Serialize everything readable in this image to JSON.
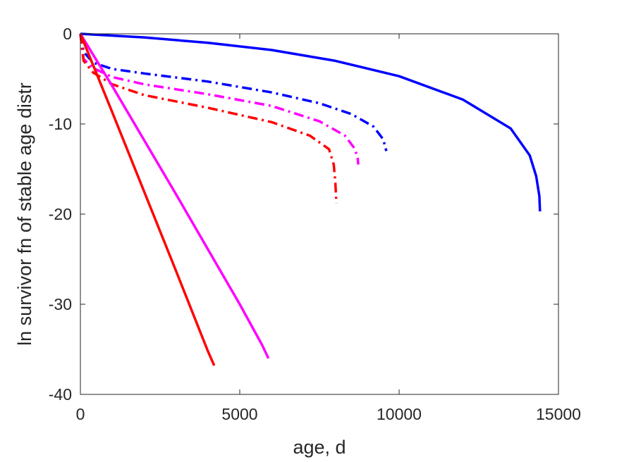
{
  "chart_data": {
    "type": "line",
    "title": "",
    "xlabel": "age, d",
    "ylabel": "ln survivor fn of stable age distr",
    "xlim": [
      0,
      15000
    ],
    "ylim": [
      -40,
      0
    ],
    "xticks": [
      0,
      5000,
      10000,
      15000
    ],
    "xtick_labels": [
      "0",
      "5000",
      "10000",
      "15000"
    ],
    "yticks": [
      -40,
      -30,
      -20,
      -10,
      0
    ],
    "ytick_labels": [
      "-40",
      "-30",
      "-20",
      "-10",
      "0"
    ],
    "grid": false,
    "legend": "none",
    "series": [
      {
        "color": "#0000ff",
        "style": "solid",
        "x": [
          0,
          2000,
          4000,
          6000,
          8000,
          10000,
          12000,
          13500,
          14100,
          14300,
          14400,
          14420
        ],
        "y": [
          0,
          -0.4,
          -1.0,
          -1.8,
          -3.0,
          -4.7,
          -7.3,
          -10.5,
          -13.5,
          -15.8,
          -18.0,
          -19.7
        ]
      },
      {
        "color": "#0000ff",
        "style": "dashdot",
        "x": [
          0,
          100,
          400,
          1000,
          2000,
          4000,
          6000,
          7500,
          8500,
          9200,
          9500,
          9600
        ],
        "y": [
          0,
          -2.0,
          -3.2,
          -3.9,
          -4.4,
          -5.3,
          -6.5,
          -7.7,
          -8.9,
          -10.3,
          -11.7,
          -13.0
        ]
      },
      {
        "color": "#ff00ff",
        "style": "dashdot",
        "x": [
          0,
          100,
          400,
          1000,
          2000,
          4000,
          6000,
          7500,
          8300,
          8600,
          8700,
          8720
        ],
        "y": [
          0,
          -2.8,
          -3.8,
          -4.8,
          -5.6,
          -6.7,
          -8.0,
          -9.7,
          -11.3,
          -12.7,
          -13.7,
          -14.5
        ]
      },
      {
        "color": "#ff0000",
        "style": "dashdot",
        "x": [
          0,
          100,
          400,
          1000,
          2000,
          4000,
          6000,
          7200,
          7800,
          7950,
          8000,
          8030
        ],
        "y": [
          0,
          -3.0,
          -4.3,
          -5.6,
          -6.8,
          -8.2,
          -9.8,
          -11.3,
          -12.8,
          -14.5,
          -16.5,
          -18.8
        ]
      },
      {
        "color": "#ff00ff",
        "style": "solid",
        "x": [
          0,
          1000,
          2000,
          3000,
          4000,
          5000,
          5700,
          5900
        ],
        "y": [
          0,
          -5.8,
          -11.8,
          -17.8,
          -23.9,
          -30.0,
          -34.5,
          -36.0
        ]
      },
      {
        "color": "#ff0000",
        "style": "solid",
        "x": [
          0,
          1000,
          2000,
          3000,
          4000,
          4200
        ],
        "y": [
          0,
          -8.7,
          -17.5,
          -26.3,
          -35.2,
          -36.8
        ]
      }
    ]
  }
}
